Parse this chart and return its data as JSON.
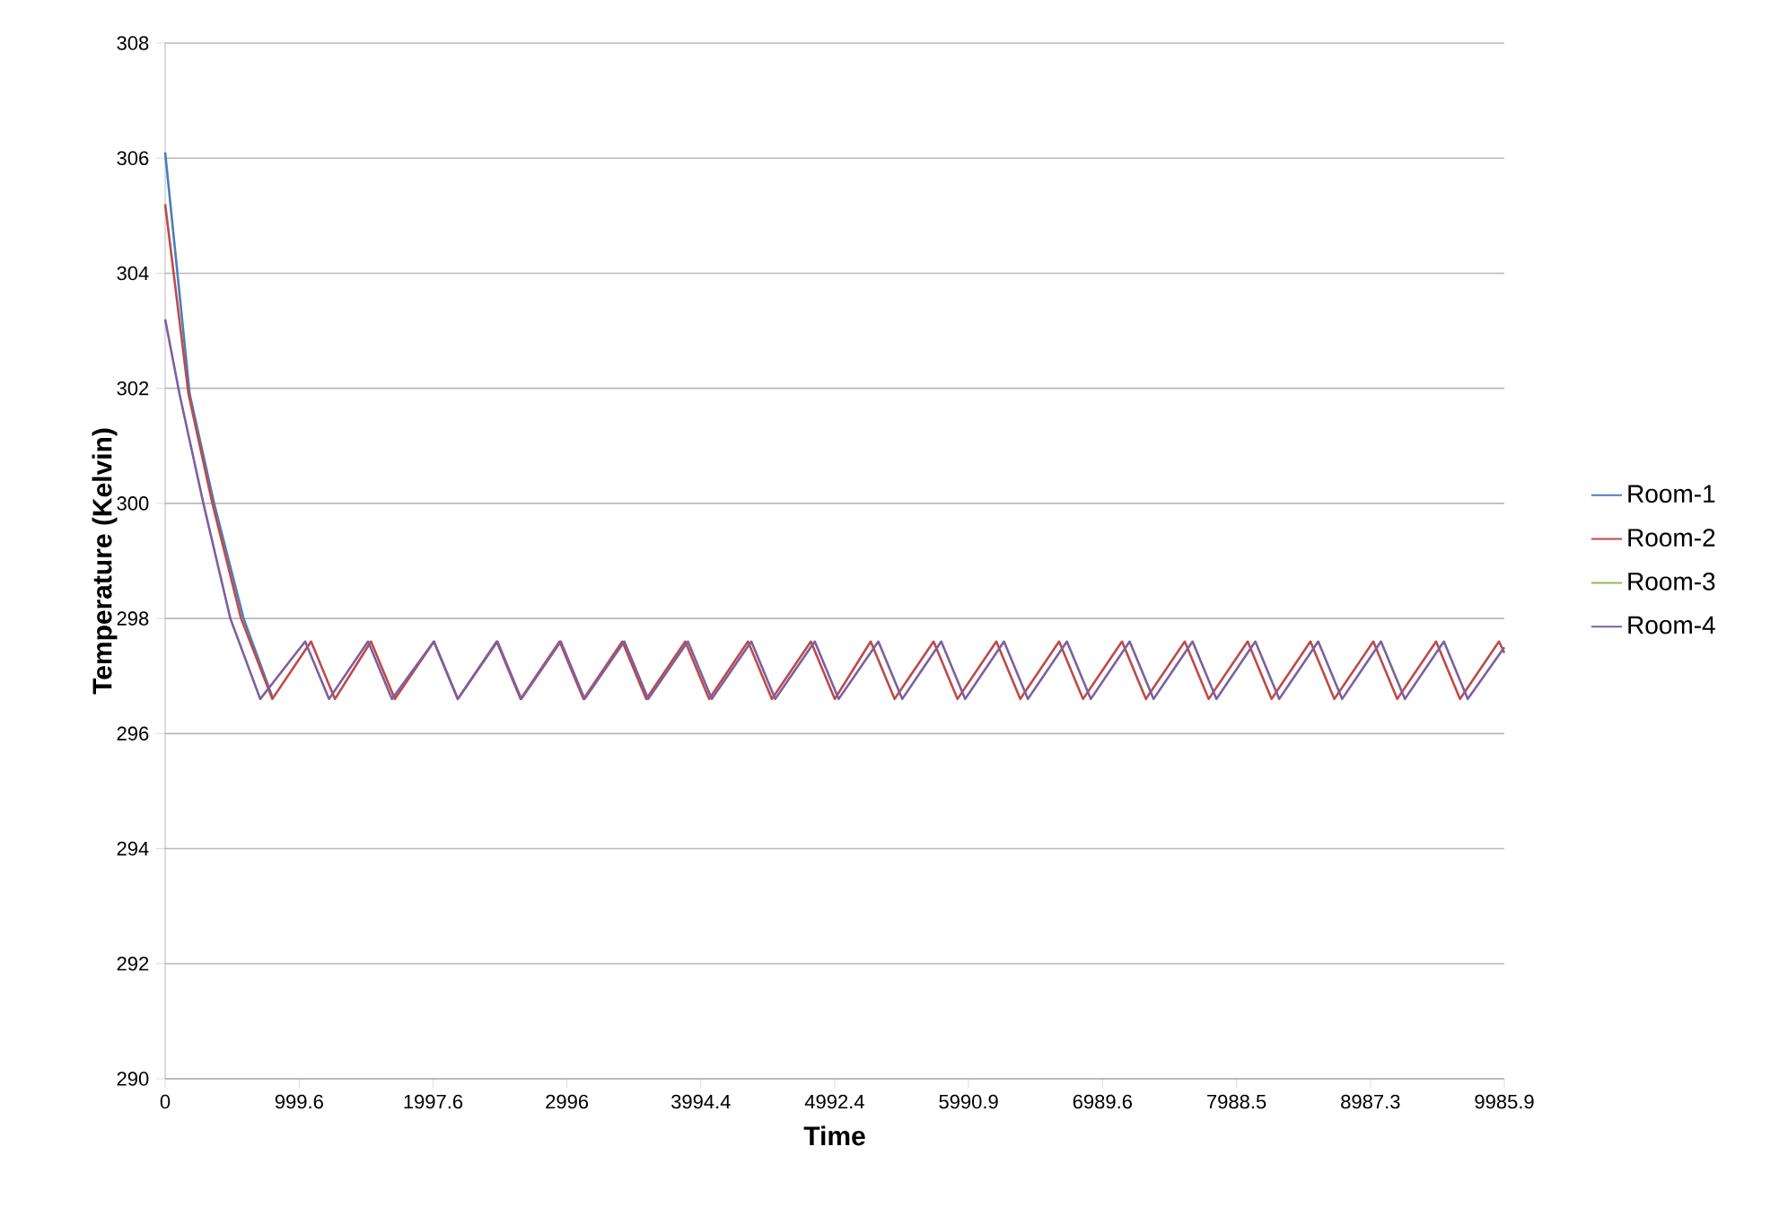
{
  "chart_data": {
    "type": "line",
    "xlabel": "Time",
    "ylabel": "Temperature (Kelvin)",
    "xlim": [
      0,
      9985.9
    ],
    "xticks": [
      0,
      999.6,
      1997.6,
      2996,
      3994.4,
      4992.4,
      5990.9,
      6989.6,
      7988.5,
      8987.3,
      9985.9
    ],
    "ylim": [
      290,
      308
    ],
    "yticks": [
      290,
      292,
      294,
      296,
      298,
      300,
      302,
      304,
      306,
      308
    ],
    "grid": "y",
    "legend": "right",
    "series": [
      {
        "name": "Room-1",
        "color": "#4a7ebb",
        "x": [
          0,
          183,
          365,
          585,
          805
        ],
        "values": [
          306.1,
          301.9,
          300.0,
          298.0,
          296.6
        ]
      },
      {
        "name": "Room-2",
        "color": "#be4b48",
        "x": [
          0,
          174,
          352,
          566,
          799,
          1088,
          1266,
          1535,
          1713,
          2004,
          2182,
          2472,
          2650,
          2941,
          3119,
          3409,
          3587,
          3878,
          4056,
          4346,
          4524,
          4815,
          4993,
          5261,
          5439,
          5730,
          5908,
          6198,
          6376,
          6666,
          6844,
          7135,
          7313,
          7603,
          7781,
          8072,
          8250,
          8540,
          8718,
          9009,
          9187,
          9477,
          9655,
          9946,
          9985.9
        ],
        "values": [
          305.2,
          301.9,
          300.0,
          298.0,
          296.6,
          297.6,
          296.6,
          297.6,
          296.6,
          297.6,
          296.6,
          297.6,
          296.6,
          297.6,
          296.6,
          297.6,
          296.6,
          297.6,
          296.6,
          297.6,
          296.6,
          297.6,
          296.6,
          297.6,
          296.6,
          297.6,
          296.6,
          297.6,
          296.6,
          297.6,
          296.6,
          297.6,
          296.6,
          297.6,
          296.6,
          297.6,
          296.6,
          297.6,
          296.6,
          297.6,
          296.6,
          297.6,
          296.6,
          297.6,
          297.4
        ]
      },
      {
        "name": "Room-3",
        "color": "#98b954"
      },
      {
        "name": "Room-4",
        "color": "#7d60a0",
        "x": [
          0,
          107,
          285,
          486,
          709,
          1044,
          1222,
          1513,
          1691,
          2004,
          2182,
          2478,
          2656,
          2950,
          3128,
          3424,
          3602,
          3898,
          4076,
          4371,
          4549,
          4844,
          5022,
          5318,
          5496,
          5787,
          5965,
          6255,
          6433,
          6724,
          6902,
          7192,
          7370,
          7661,
          7839,
          8129,
          8307,
          8598,
          8776,
          9066,
          9244,
          9535,
          9713,
          9985.9
        ],
        "values": [
          303.2,
          301.9,
          300.0,
          298.0,
          296.6,
          297.6,
          296.6,
          297.6,
          296.6,
          297.6,
          296.6,
          297.6,
          296.6,
          297.6,
          296.6,
          297.6,
          296.6,
          297.6,
          296.6,
          297.6,
          296.6,
          297.6,
          296.6,
          297.6,
          296.6,
          297.6,
          296.6,
          297.6,
          296.6,
          297.6,
          296.6,
          297.6,
          296.6,
          297.6,
          296.6,
          297.6,
          296.6,
          297.6,
          296.6,
          297.6,
          296.6,
          297.6,
          296.6,
          297.5
        ]
      }
    ]
  }
}
